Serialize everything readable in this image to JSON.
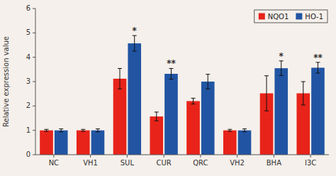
{
  "chart_data": {
    "type": "bar",
    "categories": [
      "NC",
      "VH1",
      "SUL",
      "CUR",
      "QRC",
      "VH2",
      "BHA",
      "I3C"
    ],
    "series": [
      {
        "name": "NQO1",
        "color": "#e8231a",
        "values": [
          1.0,
          1.0,
          3.12,
          1.57,
          2.2,
          1.0,
          2.52,
          2.52
        ],
        "errors": [
          0.04,
          0.04,
          0.42,
          0.18,
          0.12,
          0.04,
          0.72,
          0.48
        ]
      },
      {
        "name": "HO-1",
        "color": "#2155a3",
        "values": [
          1.0,
          1.0,
          4.57,
          3.32,
          3.0,
          1.0,
          3.55,
          3.57
        ],
        "errors": [
          0.06,
          0.06,
          0.32,
          0.22,
          0.3,
          0.06,
          0.3,
          0.22
        ],
        "annotations": [
          null,
          null,
          "*",
          "**",
          null,
          null,
          "*",
          "**"
        ]
      }
    ],
    "ylabel": "Relative expression value",
    "ylim": [
      0,
      6
    ],
    "yticks": [
      0,
      1,
      2,
      3,
      4,
      5,
      6
    ],
    "legend": "upper right"
  }
}
